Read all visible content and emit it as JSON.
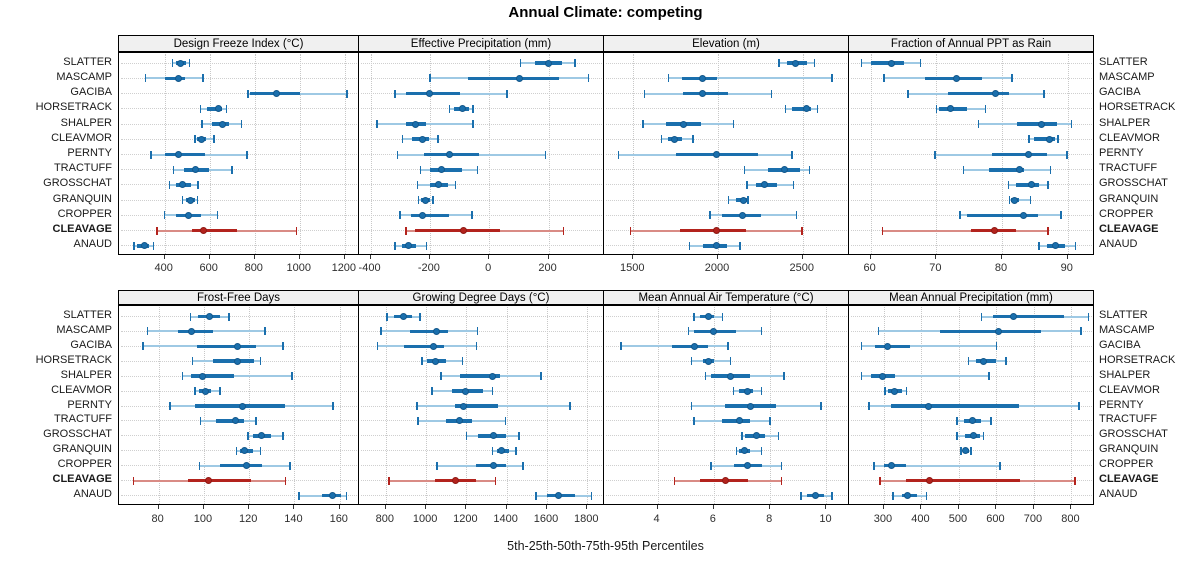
{
  "title": "Annual Climate: competing",
  "caption": "5th-25th-50th-75th-95th Percentiles",
  "percentile_labels": [
    "5th",
    "25th",
    "50th",
    "75th",
    "95th"
  ],
  "sites": [
    "SLATTER",
    "MASCAMP",
    "GACIBA",
    "HORSETRACK",
    "SHALPER",
    "CLEAVMOR",
    "PERNTY",
    "TRACTUFF",
    "GROSSCHAT",
    "GRANQUIN",
    "CROPPER",
    "CLEAVAGE",
    "ANAUD"
  ],
  "highlight_site": "CLEAVAGE",
  "colors": {
    "series_dark": "#1a6fad",
    "series_light": "#9ec9e4",
    "series_dot_edge": "#14578a",
    "highlight_dark": "#b3231d",
    "highlight_light": "#d98b85",
    "highlight_dot_edge": "#8f1a15",
    "strip_bg": "#f0f0f0",
    "grid_dotted": "#c8c8c8",
    "panel_border": "#000000"
  },
  "chart_data": {
    "type": "dot-whisker-multipanel",
    "note": "Each row: [5th,25th,50th,75th,95th] percentile per site, sites ordered as in sites[]",
    "legend_position": "none",
    "grid": "dotted horizontal per row and vertical per tick",
    "panels": [
      {
        "title": "Design Freeze Index (°C)",
        "grid_row": 0,
        "col": 0,
        "range": [
          197,
          1263
        ],
        "ticks": [
          400,
          600,
          800,
          1000,
          1200
        ],
        "values": [
          [
            435,
            448,
            470,
            493,
            510
          ],
          [
            315,
            400,
            460,
            490,
            570
          ],
          [
            770,
            780,
            895,
            1000,
            1210
          ],
          [
            560,
            590,
            638,
            656,
            675
          ],
          [
            565,
            610,
            658,
            686,
            740
          ],
          [
            535,
            542,
            562,
            585,
            620
          ],
          [
            340,
            400,
            460,
            580,
            765
          ],
          [
            440,
            486,
            535,
            596,
            700
          ],
          [
            421,
            449,
            481,
            516,
            549
          ],
          [
            478,
            493,
            516,
            535,
            545
          ],
          [
            400,
            449,
            504,
            560,
            634
          ],
          [
            365,
            520,
            572,
            720,
            985
          ],
          [
            263,
            278,
            310,
            330,
            350
          ]
        ]
      },
      {
        "title": "Effective Precipitation (mm)",
        "grid_row": 0,
        "col": 1,
        "range": [
          -439,
          387
        ],
        "ticks": [
          -400,
          -200,
          0,
          200
        ],
        "values": [
          [
            105,
            155,
            199,
            245,
            290
          ],
          [
            -200,
            -70,
            103,
            235,
            335
          ],
          [
            -318,
            -281,
            -200,
            -97,
            60
          ],
          [
            -134,
            -120,
            -89,
            -68,
            -55
          ],
          [
            -379,
            -282,
            -247,
            -213,
            -55
          ],
          [
            -293,
            -260,
            -226,
            -203,
            -172
          ],
          [
            -310,
            -220,
            -134,
            -35,
            190
          ],
          [
            -231,
            -198,
            -161,
            -92,
            -40
          ],
          [
            -242,
            -198,
            -172,
            -139,
            -114
          ],
          [
            -239,
            -231,
            -215,
            -198,
            -189
          ],
          [
            -301,
            -265,
            -226,
            -136,
            -58
          ],
          [
            -281,
            -250,
            -86,
            38,
            250
          ],
          [
            -318,
            -295,
            -271,
            -246,
            -211
          ]
        ]
      },
      {
        "title": "Elevation (m)",
        "grid_row": 0,
        "col": 2,
        "range": [
          1327,
          2773
        ],
        "ticks": [
          1500,
          2000,
          2500
        ],
        "values": [
          [
            2360,
            2405,
            2458,
            2525,
            2570
          ],
          [
            1707,
            1785,
            1911,
            1996,
            2674
          ],
          [
            1567,
            1795,
            1911,
            2059,
            2316
          ],
          [
            2399,
            2438,
            2523,
            2546,
            2586
          ],
          [
            1557,
            1691,
            1799,
            1897,
            2090
          ],
          [
            1665,
            1707,
            1744,
            1789,
            1852
          ],
          [
            1412,
            1750,
            1992,
            2236,
            2438
          ],
          [
            2155,
            2295,
            2395,
            2486,
            2541
          ],
          [
            2172,
            2222,
            2277,
            2350,
            2446
          ],
          [
            2061,
            2104,
            2151,
            2169,
            2177
          ],
          [
            1952,
            2025,
            2143,
            2251,
            2464
          ],
          [
            1484,
            1775,
            1992,
            2163,
            2496
          ],
          [
            1832,
            1911,
            1990,
            2055,
            2129
          ]
        ]
      },
      {
        "title": "Fraction of Annual PPT as Rain",
        "grid_row": 0,
        "col": 3,
        "range": [
          56.7,
          94
        ],
        "ticks": [
          60,
          70,
          80,
          90
        ],
        "values": [
          [
            58.6,
            60,
            63.1,
            65.1,
            67.6
          ],
          [
            62,
            68.3,
            73.1,
            77,
            81.5
          ],
          [
            65.7,
            71.7,
            79,
            81,
            86.4
          ],
          [
            70,
            70.4,
            72.2,
            74.7,
            77.5
          ],
          [
            76.4,
            82.3,
            86,
            88.4,
            90.6
          ],
          [
            84.1,
            84.8,
            87.3,
            88,
            88.5
          ],
          [
            69.8,
            78.5,
            84.1,
            86.9,
            89.9
          ],
          [
            74.1,
            78,
            82.6,
            83.3,
            87.4
          ],
          [
            81,
            82.2,
            84.5,
            85.6,
            87
          ],
          [
            81.1,
            81.4,
            81.9,
            82.6,
            84.3
          ],
          [
            73.6,
            74.7,
            83.2,
            85.5,
            89
          ],
          [
            61.8,
            75.2,
            78.9,
            82.2,
            87
          ],
          [
            85.6,
            86.9,
            88.1,
            89.6,
            91.2
          ]
        ]
      },
      {
        "title": "Frost-Free Days",
        "grid_row": 1,
        "col": 0,
        "range": [
          62.5,
          168.5
        ],
        "ticks": [
          80,
          100,
          120,
          140,
          160
        ],
        "values": [
          [
            94,
            97.5,
            102.5,
            107,
            111
          ],
          [
            75,
            88.5,
            94.5,
            104,
            127
          ],
          [
            73,
            97,
            115,
            123,
            135
          ],
          [
            95,
            104,
            115,
            122,
            125
          ],
          [
            90.5,
            94.5,
            99.5,
            113.5,
            139
          ],
          [
            96,
            98,
            100.5,
            103,
            107
          ],
          [
            85,
            96,
            117,
            136,
            157
          ],
          [
            98.5,
            105.5,
            114,
            117.5,
            123
          ],
          [
            119.5,
            121.5,
            125.5,
            129.5,
            135
          ],
          [
            114.5,
            116,
            118,
            121.5,
            125
          ],
          [
            98,
            107,
            119,
            125.5,
            138
          ],
          [
            69,
            93,
            102,
            121,
            136
          ],
          [
            142,
            152,
            157,
            160.5,
            163
          ]
        ]
      },
      {
        "title": "Growing Degree Days (°C)",
        "grid_row": 1,
        "col": 1,
        "range": [
          667,
          1883
        ],
        "ticks": [
          800,
          1000,
          1200,
          1400,
          1600,
          1800
        ],
        "values": [
          [
            805,
            840,
            890,
            930,
            970
          ],
          [
            775,
            920,
            1050,
            1110,
            1255
          ],
          [
            760,
            890,
            1035,
            1090,
            1250
          ],
          [
            980,
            1005,
            1045,
            1100,
            1180
          ],
          [
            1075,
            1170,
            1330,
            1365,
            1570
          ],
          [
            1030,
            1130,
            1195,
            1280,
            1330
          ],
          [
            955,
            1145,
            1185,
            1355,
            1715
          ],
          [
            960,
            1100,
            1165,
            1230,
            1395
          ],
          [
            1200,
            1260,
            1335,
            1395,
            1460
          ],
          [
            1330,
            1350,
            1375,
            1410,
            1445
          ],
          [
            1055,
            1250,
            1335,
            1395,
            1480
          ],
          [
            815,
            1045,
            1145,
            1250,
            1345
          ],
          [
            1545,
            1600,
            1655,
            1740,
            1820
          ]
        ]
      },
      {
        "title": "Mean Annual Air Temperature (°C)",
        "grid_row": 1,
        "col": 2,
        "range": [
          2.1,
          10.8
        ],
        "ticks": [
          4,
          6,
          8,
          10
        ],
        "values": [
          [
            5.3,
            5.5,
            5.8,
            6,
            6.3
          ],
          [
            5.1,
            5.3,
            6,
            6.8,
            7.7
          ],
          [
            2.7,
            4.5,
            5.3,
            5.8,
            6.5
          ],
          [
            5.2,
            5.6,
            5.8,
            6,
            6.6
          ],
          [
            5.7,
            5.9,
            6.6,
            7.3,
            8.5
          ],
          [
            6.7,
            6.9,
            7.2,
            7.4,
            7.7
          ],
          [
            5.2,
            6.4,
            7.3,
            8.2,
            9.8
          ],
          [
            5.3,
            6.3,
            6.9,
            7.3,
            8
          ],
          [
            7,
            7.1,
            7.5,
            7.8,
            8.3
          ],
          [
            6.8,
            6.9,
            7.1,
            7.3,
            7.7
          ],
          [
            5.9,
            6.7,
            7.2,
            7.7,
            8.4
          ],
          [
            4.6,
            5.5,
            6.4,
            7.2,
            8.4
          ],
          [
            9.1,
            9.3,
            9.6,
            9.9,
            10.2
          ]
        ]
      },
      {
        "title": "Mean Annual Precipitation (mm)",
        "grid_row": 1,
        "col": 3,
        "range": [
          207,
          860
        ],
        "ticks": [
          300,
          400,
          500,
          600,
          700,
          800
        ],
        "values": [
          [
            560,
            590,
            645,
            780,
            845
          ],
          [
            285,
            450,
            605,
            720,
            825
          ],
          [
            240,
            275,
            310,
            370,
            600
          ],
          [
            525,
            545,
            565,
            600,
            625
          ],
          [
            240,
            265,
            295,
            330,
            580
          ],
          [
            303,
            312,
            327,
            347,
            360
          ],
          [
            260,
            320,
            420,
            660,
            820
          ],
          [
            495,
            513,
            535,
            560,
            585
          ],
          [
            495,
            515,
            540,
            555,
            565
          ],
          [
            505,
            510,
            517,
            526,
            532
          ],
          [
            273,
            300,
            320,
            360,
            610
          ],
          [
            290,
            358,
            422,
            664,
            810
          ],
          [
            324,
            347,
            364,
            389,
            414
          ]
        ]
      }
    ]
  }
}
